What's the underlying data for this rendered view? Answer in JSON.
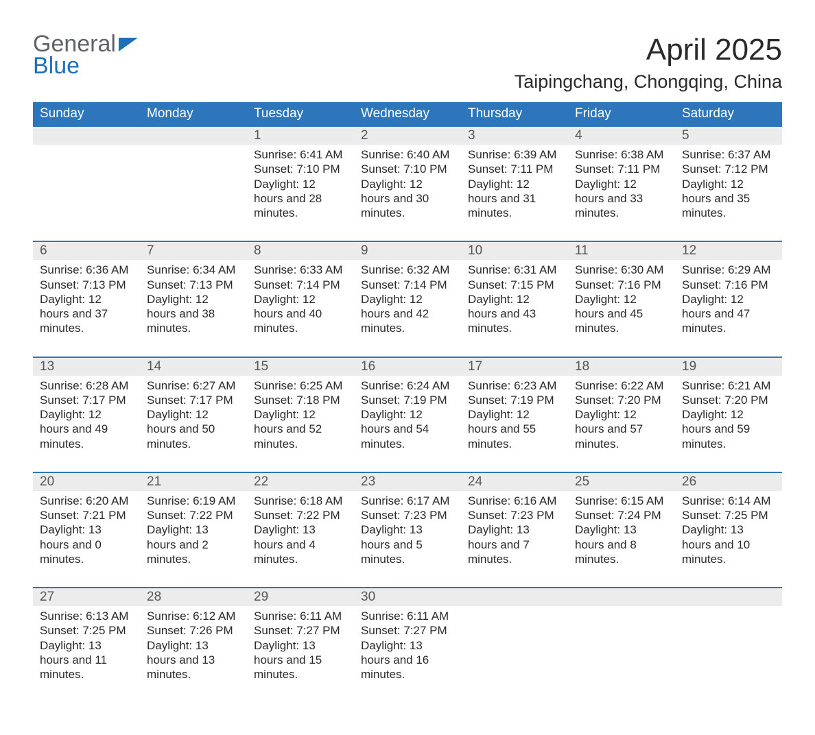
{
  "logo": {
    "word1": "General",
    "word2": "Blue",
    "colors": {
      "gray": "#5f6368",
      "blue": "#1f70b8"
    }
  },
  "header": {
    "month_title": "April 2025",
    "location": "Taipingchang, Chongqing, China"
  },
  "calendar": {
    "header_bg": "#2d76bc",
    "daynum_bg": "#ececec",
    "day_headers": [
      "Sunday",
      "Monday",
      "Tuesday",
      "Wednesday",
      "Thursday",
      "Friday",
      "Saturday"
    ],
    "weeks": [
      [
        null,
        null,
        {
          "d": "1",
          "sunrise": "Sunrise: 6:41 AM",
          "sunset": "Sunset: 7:10 PM",
          "daylight": "Daylight: 12 hours and 28 minutes."
        },
        {
          "d": "2",
          "sunrise": "Sunrise: 6:40 AM",
          "sunset": "Sunset: 7:10 PM",
          "daylight": "Daylight: 12 hours and 30 minutes."
        },
        {
          "d": "3",
          "sunrise": "Sunrise: 6:39 AM",
          "sunset": "Sunset: 7:11 PM",
          "daylight": "Daylight: 12 hours and 31 minutes."
        },
        {
          "d": "4",
          "sunrise": "Sunrise: 6:38 AM",
          "sunset": "Sunset: 7:11 PM",
          "daylight": "Daylight: 12 hours and 33 minutes."
        },
        {
          "d": "5",
          "sunrise": "Sunrise: 6:37 AM",
          "sunset": "Sunset: 7:12 PM",
          "daylight": "Daylight: 12 hours and 35 minutes."
        }
      ],
      [
        {
          "d": "6",
          "sunrise": "Sunrise: 6:36 AM",
          "sunset": "Sunset: 7:13 PM",
          "daylight": "Daylight: 12 hours and 37 minutes."
        },
        {
          "d": "7",
          "sunrise": "Sunrise: 6:34 AM",
          "sunset": "Sunset: 7:13 PM",
          "daylight": "Daylight: 12 hours and 38 minutes."
        },
        {
          "d": "8",
          "sunrise": "Sunrise: 6:33 AM",
          "sunset": "Sunset: 7:14 PM",
          "daylight": "Daylight: 12 hours and 40 minutes."
        },
        {
          "d": "9",
          "sunrise": "Sunrise: 6:32 AM",
          "sunset": "Sunset: 7:14 PM",
          "daylight": "Daylight: 12 hours and 42 minutes."
        },
        {
          "d": "10",
          "sunrise": "Sunrise: 6:31 AM",
          "sunset": "Sunset: 7:15 PM",
          "daylight": "Daylight: 12 hours and 43 minutes."
        },
        {
          "d": "11",
          "sunrise": "Sunrise: 6:30 AM",
          "sunset": "Sunset: 7:16 PM",
          "daylight": "Daylight: 12 hours and 45 minutes."
        },
        {
          "d": "12",
          "sunrise": "Sunrise: 6:29 AM",
          "sunset": "Sunset: 7:16 PM",
          "daylight": "Daylight: 12 hours and 47 minutes."
        }
      ],
      [
        {
          "d": "13",
          "sunrise": "Sunrise: 6:28 AM",
          "sunset": "Sunset: 7:17 PM",
          "daylight": "Daylight: 12 hours and 49 minutes."
        },
        {
          "d": "14",
          "sunrise": "Sunrise: 6:27 AM",
          "sunset": "Sunset: 7:17 PM",
          "daylight": "Daylight: 12 hours and 50 minutes."
        },
        {
          "d": "15",
          "sunrise": "Sunrise: 6:25 AM",
          "sunset": "Sunset: 7:18 PM",
          "daylight": "Daylight: 12 hours and 52 minutes."
        },
        {
          "d": "16",
          "sunrise": "Sunrise: 6:24 AM",
          "sunset": "Sunset: 7:19 PM",
          "daylight": "Daylight: 12 hours and 54 minutes."
        },
        {
          "d": "17",
          "sunrise": "Sunrise: 6:23 AM",
          "sunset": "Sunset: 7:19 PM",
          "daylight": "Daylight: 12 hours and 55 minutes."
        },
        {
          "d": "18",
          "sunrise": "Sunrise: 6:22 AM",
          "sunset": "Sunset: 7:20 PM",
          "daylight": "Daylight: 12 hours and 57 minutes."
        },
        {
          "d": "19",
          "sunrise": "Sunrise: 6:21 AM",
          "sunset": "Sunset: 7:20 PM",
          "daylight": "Daylight: 12 hours and 59 minutes."
        }
      ],
      [
        {
          "d": "20",
          "sunrise": "Sunrise: 6:20 AM",
          "sunset": "Sunset: 7:21 PM",
          "daylight": "Daylight: 13 hours and 0 minutes."
        },
        {
          "d": "21",
          "sunrise": "Sunrise: 6:19 AM",
          "sunset": "Sunset: 7:22 PM",
          "daylight": "Daylight: 13 hours and 2 minutes."
        },
        {
          "d": "22",
          "sunrise": "Sunrise: 6:18 AM",
          "sunset": "Sunset: 7:22 PM",
          "daylight": "Daylight: 13 hours and 4 minutes."
        },
        {
          "d": "23",
          "sunrise": "Sunrise: 6:17 AM",
          "sunset": "Sunset: 7:23 PM",
          "daylight": "Daylight: 13 hours and 5 minutes."
        },
        {
          "d": "24",
          "sunrise": "Sunrise: 6:16 AM",
          "sunset": "Sunset: 7:23 PM",
          "daylight": "Daylight: 13 hours and 7 minutes."
        },
        {
          "d": "25",
          "sunrise": "Sunrise: 6:15 AM",
          "sunset": "Sunset: 7:24 PM",
          "daylight": "Daylight: 13 hours and 8 minutes."
        },
        {
          "d": "26",
          "sunrise": "Sunrise: 6:14 AM",
          "sunset": "Sunset: 7:25 PM",
          "daylight": "Daylight: 13 hours and 10 minutes."
        }
      ],
      [
        {
          "d": "27",
          "sunrise": "Sunrise: 6:13 AM",
          "sunset": "Sunset: 7:25 PM",
          "daylight": "Daylight: 13 hours and 11 minutes."
        },
        {
          "d": "28",
          "sunrise": "Sunrise: 6:12 AM",
          "sunset": "Sunset: 7:26 PM",
          "daylight": "Daylight: 13 hours and 13 minutes."
        },
        {
          "d": "29",
          "sunrise": "Sunrise: 6:11 AM",
          "sunset": "Sunset: 7:27 PM",
          "daylight": "Daylight: 13 hours and 15 minutes."
        },
        {
          "d": "30",
          "sunrise": "Sunrise: 6:11 AM",
          "sunset": "Sunset: 7:27 PM",
          "daylight": "Daylight: 13 hours and 16 minutes."
        },
        null,
        null,
        null
      ]
    ]
  }
}
